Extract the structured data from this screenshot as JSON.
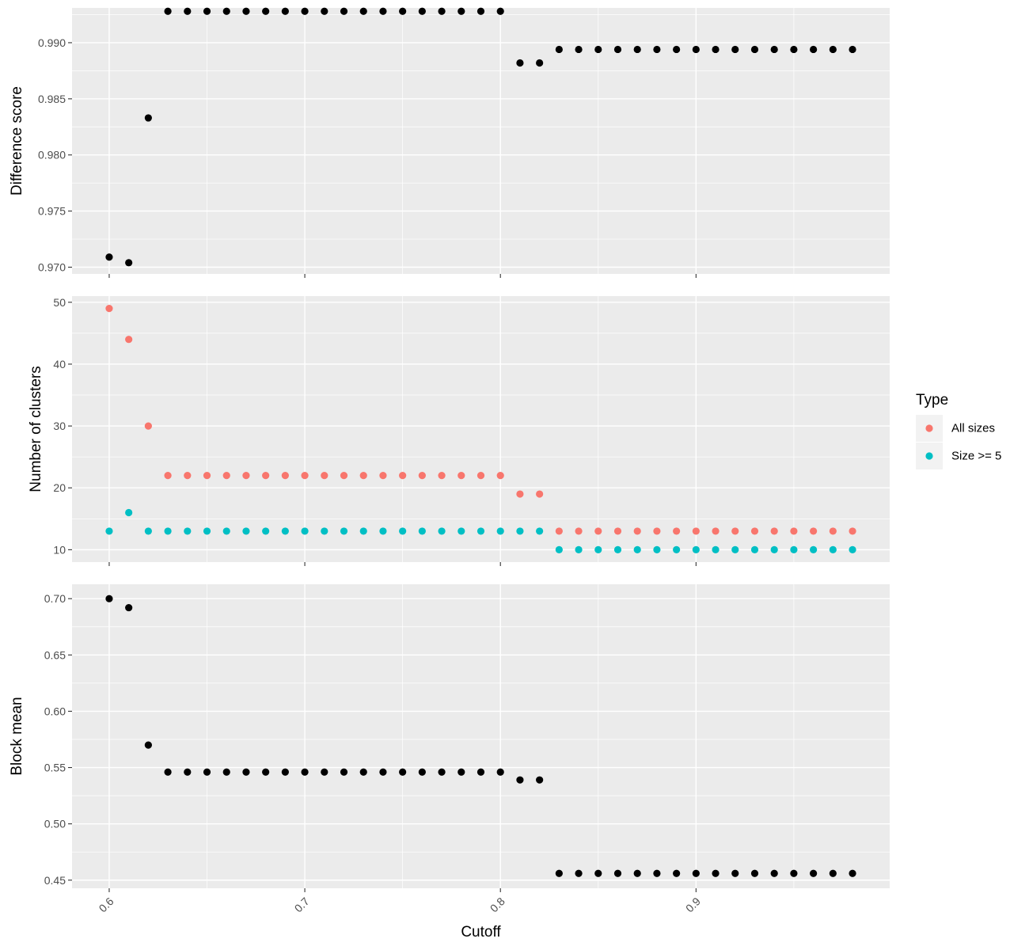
{
  "chart_data": {
    "type": "scatter",
    "x": [
      0.6,
      0.61,
      0.62,
      0.63,
      0.64,
      0.65,
      0.66,
      0.67,
      0.68,
      0.69,
      0.7,
      0.71,
      0.72,
      0.73,
      0.74,
      0.75,
      0.76,
      0.77,
      0.78,
      0.79,
      0.8,
      0.81,
      0.82,
      0.83,
      0.84,
      0.85,
      0.86,
      0.87,
      0.88,
      0.89,
      0.9,
      0.91,
      0.92,
      0.93,
      0.94,
      0.95,
      0.96,
      0.97,
      0.98
    ],
    "xlabel": "Cutoff",
    "xticks": [
      "0.6",
      "0.7",
      "0.8",
      "0.9"
    ],
    "xlim": [
      0.581,
      0.999
    ],
    "panels": [
      {
        "ylabel": "Difference score",
        "ylim": [
          0.9694,
          0.9931
        ],
        "yticks": [
          "0.970",
          "0.975",
          "0.980",
          "0.985",
          "0.990"
        ],
        "series": [
          {
            "color": "#000000",
            "values": [
              0.9709,
              0.9704,
              0.9833,
              0.9928,
              0.9928,
              0.9928,
              0.9928,
              0.9928,
              0.9928,
              0.9928,
              0.9928,
              0.9928,
              0.9928,
              0.9928,
              0.9928,
              0.9928,
              0.9928,
              0.9928,
              0.9928,
              0.9928,
              0.9928,
              0.9882,
              0.9882,
              0.9894,
              0.9894,
              0.9894,
              0.9894,
              0.9894,
              0.9894,
              0.9894,
              0.9894,
              0.9894,
              0.9894,
              0.9894,
              0.9894,
              0.9894,
              0.9894,
              0.9894,
              0.9894
            ]
          }
        ]
      },
      {
        "ylabel": "Number of clusters",
        "ylim": [
          8.0,
          51.0
        ],
        "yticks": [
          "10",
          "20",
          "30",
          "40",
          "50"
        ],
        "series": [
          {
            "name": "All sizes",
            "color": "#F8766D",
            "values": [
              49,
              44,
              30,
              22,
              22,
              22,
              22,
              22,
              22,
              22,
              22,
              22,
              22,
              22,
              22,
              22,
              22,
              22,
              22,
              22,
              22,
              19,
              19,
              13,
              13,
              13,
              13,
              13,
              13,
              13,
              13,
              13,
              13,
              13,
              13,
              13,
              13,
              13,
              13
            ]
          },
          {
            "name": "Size >= 5",
            "color": "#00BFC4",
            "values": [
              13,
              16,
              13,
              13,
              13,
              13,
              13,
              13,
              13,
              13,
              13,
              13,
              13,
              13,
              13,
              13,
              13,
              13,
              13,
              13,
              13,
              13,
              13,
              10,
              10,
              10,
              10,
              10,
              10,
              10,
              10,
              10,
              10,
              10,
              10,
              10,
              10,
              10,
              10
            ]
          }
        ]
      },
      {
        "ylabel": "Block mean",
        "ylim": [
          0.4428,
          0.7128
        ],
        "yticks": [
          "0.45",
          "0.50",
          "0.55",
          "0.60",
          "0.65",
          "0.70"
        ],
        "series": [
          {
            "color": "#000000",
            "values": [
              0.7,
              0.692,
              0.57,
              0.546,
              0.546,
              0.546,
              0.546,
              0.546,
              0.546,
              0.546,
              0.546,
              0.546,
              0.546,
              0.546,
              0.546,
              0.546,
              0.546,
              0.546,
              0.546,
              0.546,
              0.546,
              0.539,
              0.539,
              0.456,
              0.456,
              0.456,
              0.456,
              0.456,
              0.456,
              0.456,
              0.456,
              0.456,
              0.456,
              0.456,
              0.456,
              0.456,
              0.456,
              0.456,
              0.456
            ]
          }
        ]
      }
    ],
    "legend": {
      "title": "Type",
      "placement": "right",
      "entries": [
        {
          "label": "All sizes",
          "color": "#F8766D"
        },
        {
          "label": "Size >= 5",
          "color": "#00BFC4"
        }
      ]
    },
    "grid": true,
    "panel_background": "#EBEBEB",
    "grid_color": "#FFFFFF"
  }
}
